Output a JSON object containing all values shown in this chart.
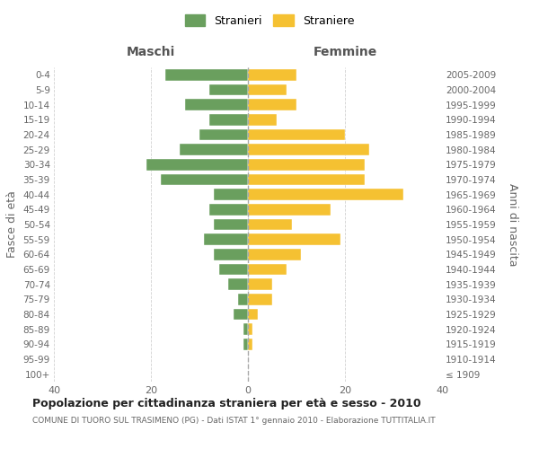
{
  "age_groups": [
    "100+",
    "95-99",
    "90-94",
    "85-89",
    "80-84",
    "75-79",
    "70-74",
    "65-69",
    "60-64",
    "55-59",
    "50-54",
    "45-49",
    "40-44",
    "35-39",
    "30-34",
    "25-29",
    "20-24",
    "15-19",
    "10-14",
    "5-9",
    "0-4"
  ],
  "anni_nascita": [
    "≤ 1909",
    "1910-1914",
    "1915-1919",
    "1920-1924",
    "1925-1929",
    "1930-1934",
    "1935-1939",
    "1940-1944",
    "1945-1949",
    "1950-1954",
    "1955-1959",
    "1960-1964",
    "1965-1969",
    "1970-1974",
    "1975-1979",
    "1980-1984",
    "1985-1989",
    "1990-1994",
    "1995-1999",
    "2000-2004",
    "2005-2009"
  ],
  "maschi": [
    0,
    0,
    1,
    1,
    3,
    2,
    4,
    6,
    7,
    9,
    7,
    8,
    7,
    18,
    21,
    14,
    10,
    8,
    13,
    8,
    17
  ],
  "femmine": [
    0,
    0,
    1,
    1,
    2,
    5,
    5,
    8,
    11,
    19,
    9,
    17,
    32,
    24,
    24,
    25,
    20,
    6,
    10,
    8,
    10
  ],
  "color_maschi": "#6a9f5e",
  "color_femmine": "#f5c132",
  "title": "Popolazione per cittadinanza straniera per età e sesso - 2010",
  "subtitle": "COMUNE DI TUORO SUL TRASIMENO (PG) - Dati ISTAT 1° gennaio 2010 - Elaborazione TUTTITALIA.IT",
  "ylabel_left": "Fasce di età",
  "ylabel_right": "Anni di nascita",
  "xlabel_left": "Maschi",
  "xlabel_right": "Femmine",
  "legend_maschi": "Stranieri",
  "legend_femmine": "Straniere",
  "xlim": 40,
  "background_color": "#ffffff",
  "grid_color": "#cccccc"
}
